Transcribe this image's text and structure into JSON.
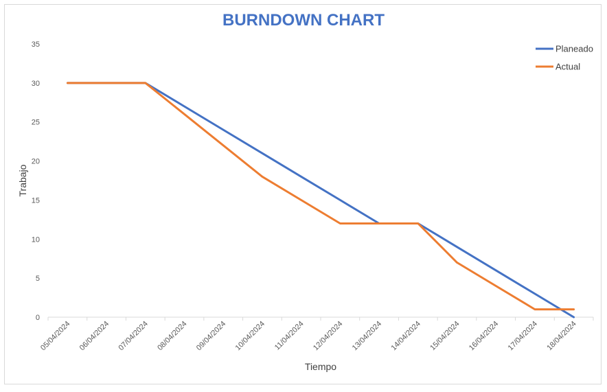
{
  "chart_data": {
    "type": "line",
    "title": "BURNDOWN CHART",
    "xlabel": "Tiempo",
    "ylabel": "Trabajo",
    "ylim": [
      0,
      35
    ],
    "yticks": [
      0,
      5,
      10,
      15,
      20,
      25,
      30,
      35
    ],
    "categories": [
      "05/04/2024",
      "06/04/2024",
      "07/04/2024",
      "08/04/2024",
      "09/04/2024",
      "10/04/2024",
      "11/04/2024",
      "12/04/2024",
      "13/04/2024",
      "14/04/2024",
      "15/04/2024",
      "16/04/2024",
      "17/04/2024",
      "18/04/2024"
    ],
    "series": [
      {
        "name": "Planeado",
        "color": "#4472c4",
        "values": [
          30,
          30,
          30,
          27,
          24,
          21,
          18,
          15,
          12,
          12,
          9,
          6,
          3,
          0
        ]
      },
      {
        "name": "Actual",
        "color": "#ed7d31",
        "values": [
          30,
          30,
          30,
          26,
          22,
          18,
          15,
          12,
          12,
          12,
          7,
          4,
          1,
          1
        ]
      }
    ],
    "legend": "top-right",
    "grid": false
  }
}
